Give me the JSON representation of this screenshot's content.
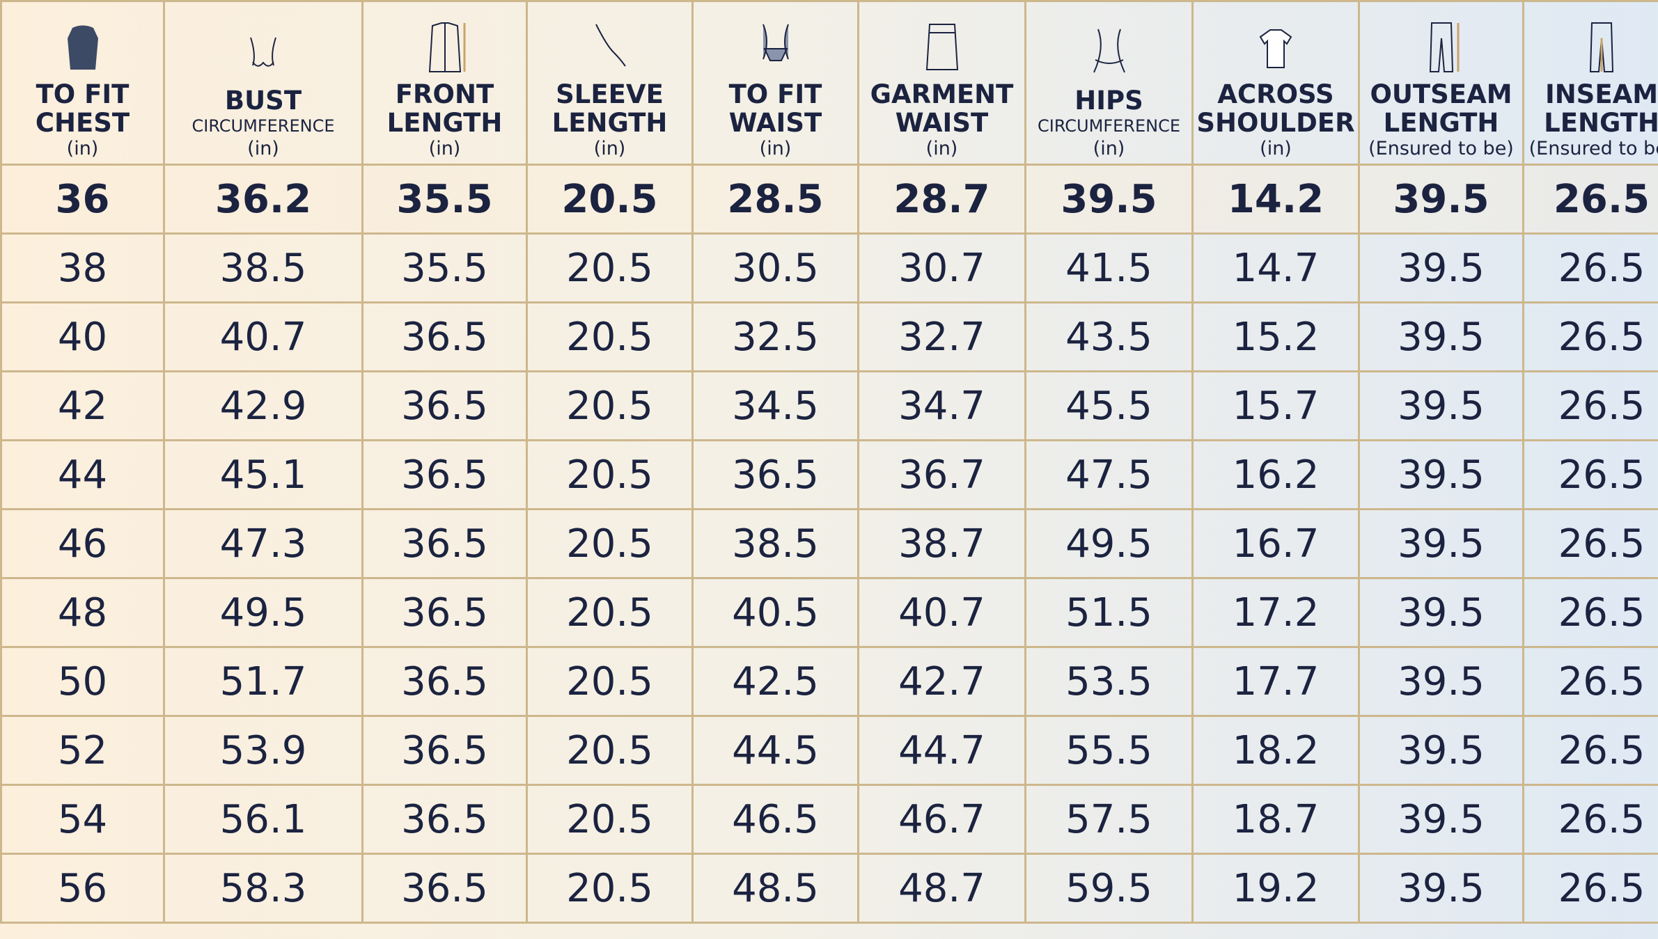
{
  "header": {
    "columns": [
      {
        "lines": [
          "TO FIT",
          "CHEST"
        ],
        "unit": "(in)"
      },
      {
        "lines": [
          "BUST"
        ],
        "small": "CIRCUMFERENCE",
        "unit": "(in)"
      },
      {
        "lines": [
          "FRONT",
          "LENGTH"
        ],
        "unit": "(in)"
      },
      {
        "lines": [
          "SLEEVE",
          "LENGTH"
        ],
        "unit": "(in)"
      },
      {
        "lines": [
          "TO FIT",
          "WAIST"
        ],
        "unit": "(in)"
      },
      {
        "lines": [
          "GARMENT",
          "WAIST"
        ],
        "unit": "(in)"
      },
      {
        "lines": [
          "HIPS"
        ],
        "small": "CIRCUMFERENCE",
        "unit": "(in)"
      },
      {
        "lines": [
          "ACROSS",
          "SHOULDER"
        ],
        "unit": "(in)"
      },
      {
        "lines": [
          "OUTSEAM",
          "LENGTH"
        ],
        "unit": "(Ensured to be)"
      },
      {
        "lines": [
          "INSEAM",
          "LENGTH"
        ],
        "unit": "(Ensured to be)"
      }
    ]
  },
  "table": {
    "rows": [
      [
        36,
        36.2,
        35.5,
        20.5,
        28.5,
        28.7,
        39.5,
        14.2,
        39.5,
        26.5
      ],
      [
        38,
        38.5,
        35.5,
        20.5,
        30.5,
        30.7,
        41.5,
        14.7,
        39.5,
        26.5
      ],
      [
        40,
        40.7,
        36.5,
        20.5,
        32.5,
        32.7,
        43.5,
        15.2,
        39.5,
        26.5
      ],
      [
        42,
        42.9,
        36.5,
        20.5,
        34.5,
        34.7,
        45.5,
        15.7,
        39.5,
        26.5
      ],
      [
        44,
        45.1,
        36.5,
        20.5,
        36.5,
        36.7,
        47.5,
        16.2,
        39.5,
        26.5
      ],
      [
        46,
        47.3,
        36.5,
        20.5,
        38.5,
        38.7,
        49.5,
        16.7,
        39.5,
        26.5
      ],
      [
        48,
        49.5,
        36.5,
        20.5,
        40.5,
        40.7,
        51.5,
        17.2,
        39.5,
        26.5
      ],
      [
        50,
        51.7,
        36.5,
        20.5,
        42.5,
        42.7,
        53.5,
        17.7,
        39.5,
        26.5
      ],
      [
        52,
        53.9,
        36.5,
        20.5,
        44.5,
        44.7,
        55.5,
        18.2,
        39.5,
        26.5
      ],
      [
        54,
        56.1,
        36.5,
        20.5,
        46.5,
        46.7,
        57.5,
        18.7,
        39.5,
        26.5
      ],
      [
        56,
        58.3,
        36.5,
        20.5,
        48.5,
        48.7,
        59.5,
        19.2,
        39.5,
        26.5
      ]
    ]
  }
}
